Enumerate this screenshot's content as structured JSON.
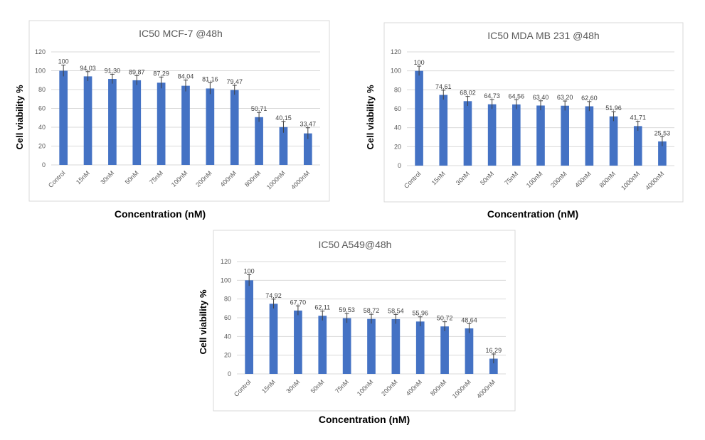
{
  "chart_data": [
    {
      "type": "bar",
      "title": "IC50 MCF-7 @48h",
      "xlabel": "Concentration (nM)",
      "ylabel": "Cell viability %",
      "ylim": [
        0,
        120
      ],
      "yticks": [
        0,
        20,
        40,
        60,
        80,
        100,
        120
      ],
      "grid": true,
      "categories": [
        "Control",
        "15nM",
        "30nM",
        "50nM",
        "75nM",
        "100nM",
        "200nM",
        "400nM",
        "800nM",
        "1000nM",
        "4000nM"
      ],
      "values": [
        100,
        94.03,
        91.3,
        89.87,
        87.29,
        84.04,
        81.16,
        79.47,
        50.71,
        40.15,
        33.47
      ],
      "value_labels": [
        "100",
        "94,03",
        "91,30",
        "89,87",
        "87,29",
        "84,04",
        "81,16",
        "79,47",
        "50,71",
        "40,15",
        "33,47"
      ],
      "errors": [
        6,
        5,
        5,
        5,
        6,
        6,
        6,
        5,
        5,
        6,
        6
      ],
      "color": "#4472c4"
    },
    {
      "type": "bar",
      "title": "IC50 MDA MB 231 @48h",
      "xlabel": "Concentration (nM)",
      "ylabel": "Cell viability %",
      "ylim": [
        0,
        120
      ],
      "yticks": [
        0,
        20,
        40,
        60,
        80,
        100,
        120
      ],
      "grid": true,
      "categories": [
        "Control",
        "15nM",
        "30nM",
        "50nM",
        "75nM",
        "100nM",
        "200nM",
        "400nM",
        "800nM",
        "1000nM",
        "4000nM"
      ],
      "values": [
        100,
        74.61,
        68.02,
        64.73,
        64.56,
        63.4,
        63.2,
        62.6,
        51.96,
        41.71,
        25.53
      ],
      "value_labels": [
        "100",
        "74,61",
        "68,02",
        "64,73",
        "64,56",
        "63,40",
        "63,20",
        "62,60",
        "51,96",
        "41,71",
        "25,53"
      ],
      "errors": [
        5,
        5,
        5,
        5,
        5,
        5,
        5,
        5,
        5,
        5,
        5
      ],
      "color": "#4472c4"
    },
    {
      "type": "bar",
      "title": "IC50 A549@48h",
      "xlabel": "Concentration (nM)",
      "ylabel": "Cell viability %",
      "ylim": [
        0,
        120
      ],
      "yticks": [
        0,
        20,
        40,
        60,
        80,
        100,
        120
      ],
      "grid": true,
      "categories": [
        "Control",
        "15nM",
        "30nM",
        "50nM",
        "75nM",
        "100nM",
        "200nM",
        "400nM",
        "800nM",
        "1000nM",
        "4000nM"
      ],
      "values": [
        100,
        74.92,
        67.7,
        62.11,
        59.53,
        58.72,
        58.54,
        55.96,
        50.72,
        48.64,
        16.29
      ],
      "value_labels": [
        "100",
        "74,92",
        "67,70",
        "62,11",
        "59,53",
        "58,72",
        "58,54",
        "55,96",
        "50,72",
        "48,64",
        "16,29"
      ],
      "errors": [
        6,
        5,
        5,
        5,
        5,
        5,
        5,
        5,
        5,
        5,
        5
      ],
      "color": "#4472c4"
    }
  ]
}
